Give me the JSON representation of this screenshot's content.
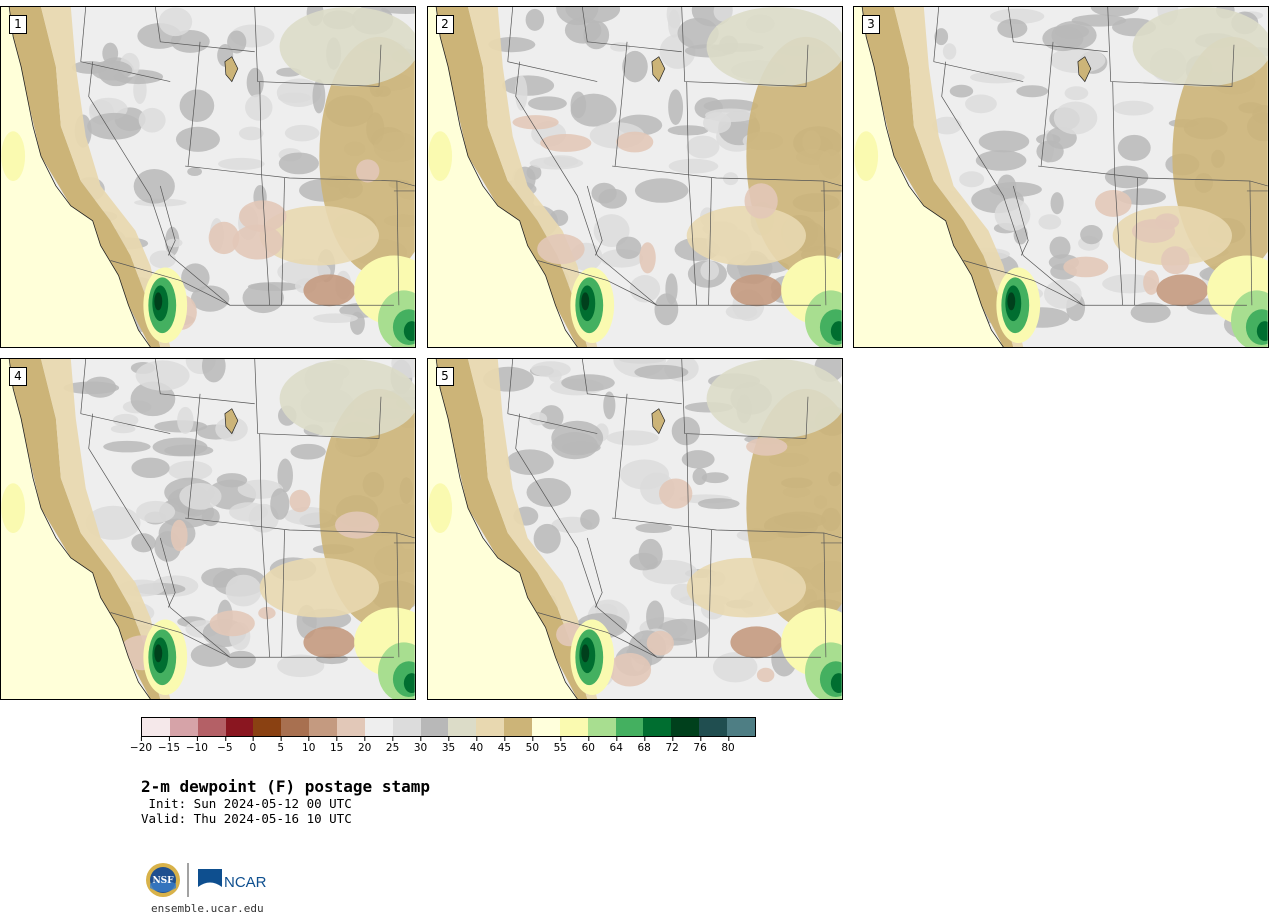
{
  "panels": [
    {
      "label": "1"
    },
    {
      "label": "2"
    },
    {
      "label": "3"
    },
    {
      "label": "4"
    },
    {
      "label": "5"
    }
  ],
  "colorbar": {
    "colors": [
      "#f5e8ea",
      "#d6a3a8",
      "#b46066",
      "#8a1620",
      "#8a4112",
      "#a87050",
      "#c49a80",
      "#e2c8b8",
      "#eeeeee",
      "#dcdcdc",
      "#b8b8b8",
      "#dcdcc8",
      "#e8d8b0",
      "#ccb478",
      "#ffffdc",
      "#fafab0",
      "#a8de90",
      "#44b060",
      "#006e30",
      "#00401c",
      "#204e50",
      "#4e7e84"
    ],
    "ticks": [
      "−20",
      "−15",
      "−10",
      "−5",
      "0",
      "5",
      "10",
      "15",
      "20",
      "25",
      "30",
      "35",
      "40",
      "45",
      "50",
      "55",
      "60",
      "64",
      "68",
      "72",
      "76",
      "80"
    ]
  },
  "title": "2-m dewpoint (F) postage stamp",
  "init": " Init: Sun 2024-05-12 00 UTC",
  "valid": "Valid: Thu 2024-05-16 10 UTC",
  "logos": {
    "nsf": "NSF",
    "ncar": "NCAR"
  },
  "footer_url": "ensemble.ucar.edu"
}
